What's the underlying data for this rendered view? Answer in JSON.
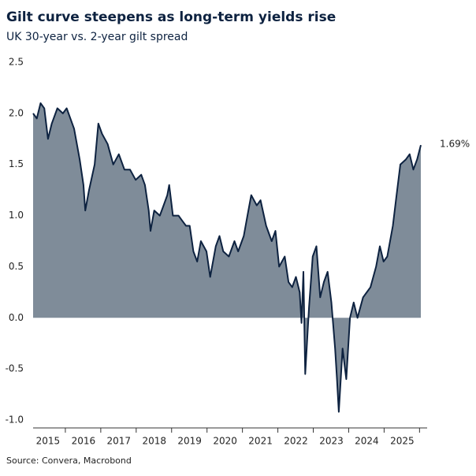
{
  "chart_data": {
    "type": "area",
    "title": "Gilt curve steepens as long-term yields rise",
    "subtitle": "UK 30-year vs. 2-year gilt spread",
    "source": "Source: Convera, Macrobond",
    "series": [
      {
        "color": "#0d2240",
        "fill": "#7f8c99",
        "x": [
          2015.1,
          2015.2,
          2015.3,
          2015.4,
          2015.5,
          2015.6,
          2015.75,
          2015.9,
          2016.0,
          2016.1,
          2016.2,
          2016.35,
          2016.45,
          2016.5,
          2016.6,
          2016.75,
          2016.85,
          2016.95,
          2017.1,
          2017.25,
          2017.4,
          2017.55,
          2017.7,
          2017.85,
          2018.0,
          2018.1,
          2018.2,
          2018.25,
          2018.35,
          2018.5,
          2018.6,
          2018.7,
          2018.75,
          2018.85,
          2019.0,
          2019.1,
          2019.2,
          2019.3,
          2019.4,
          2019.5,
          2019.6,
          2019.75,
          2019.85,
          2020.0,
          2020.1,
          2020.2,
          2020.35,
          2020.5,
          2020.6,
          2020.75,
          2020.85,
          2020.95,
          2021.1,
          2021.2,
          2021.35,
          2021.5,
          2021.6,
          2021.7,
          2021.85,
          2021.95,
          2022.05,
          2022.15,
          2022.25,
          2022.3,
          2022.35,
          2022.4,
          2022.5,
          2022.6,
          2022.7,
          2022.8,
          2022.9,
          2023.0,
          2023.1,
          2023.2,
          2023.25,
          2023.3,
          2023.4,
          2023.5,
          2023.6,
          2023.7,
          2023.8,
          2023.95,
          2024.05,
          2024.15,
          2024.3,
          2024.4,
          2024.5,
          2024.6,
          2024.75,
          2024.85,
          2024.95,
          2025.1,
          2025.2,
          2025.3,
          2025.4,
          2025.5
        ],
        "values": [
          2.0,
          1.95,
          2.1,
          2.05,
          1.75,
          1.9,
          2.05,
          2.0,
          2.05,
          1.95,
          1.85,
          1.55,
          1.3,
          1.05,
          1.25,
          1.5,
          1.9,
          1.8,
          1.7,
          1.5,
          1.6,
          1.45,
          1.45,
          1.35,
          1.4,
          1.3,
          1.05,
          0.85,
          1.05,
          1.0,
          1.1,
          1.2,
          1.3,
          1.0,
          1.0,
          0.95,
          0.9,
          0.9,
          0.65,
          0.55,
          0.75,
          0.65,
          0.4,
          0.7,
          0.8,
          0.65,
          0.6,
          0.75,
          0.65,
          0.8,
          1.0,
          1.2,
          1.1,
          1.15,
          0.9,
          0.75,
          0.85,
          0.5,
          0.6,
          0.35,
          0.3,
          0.4,
          0.25,
          -0.05,
          0.45,
          -0.55,
          0.1,
          0.6,
          0.7,
          0.2,
          0.35,
          0.45,
          0.15,
          -0.3,
          -0.6,
          -0.92,
          -0.3,
          -0.6,
          0.0,
          0.15,
          0.0,
          0.2,
          0.25,
          0.3,
          0.5,
          0.7,
          0.55,
          0.6,
          0.9,
          1.2,
          1.5,
          1.55,
          1.6,
          1.45,
          1.55,
          1.69
        ]
      }
    ],
    "annotation": {
      "label": "1.69%",
      "value": 1.69
    },
    "xlim": [
      2015.1,
      2025.5
    ],
    "xticks": [
      {
        "value": 2015.5,
        "label": "2015"
      },
      {
        "value": 2016.45,
        "label": "2016"
      },
      {
        "value": 2017.4,
        "label": "2017"
      },
      {
        "value": 2018.35,
        "label": "2018"
      },
      {
        "value": 2019.3,
        "label": "2019"
      },
      {
        "value": 2020.25,
        "label": "2020"
      },
      {
        "value": 2021.2,
        "label": "2021"
      },
      {
        "value": 2022.15,
        "label": "2022"
      },
      {
        "value": 2023.1,
        "label": "2023"
      },
      {
        "value": 2024.05,
        "label": "2024"
      },
      {
        "value": 2025.0,
        "label": "2025"
      }
    ],
    "ylim": [
      -1.0,
      2.5
    ],
    "yticks": [
      2.5,
      {
        "value": 2.0,
        "label": "2.0"
      },
      1.5,
      {
        "value": 1.0,
        "label": "1.0"
      },
      0.5,
      {
        "value": 0.0,
        "label": "0.0"
      },
      -0.5,
      {
        "value": -1.0,
        "label": "-1.0"
      }
    ]
  }
}
